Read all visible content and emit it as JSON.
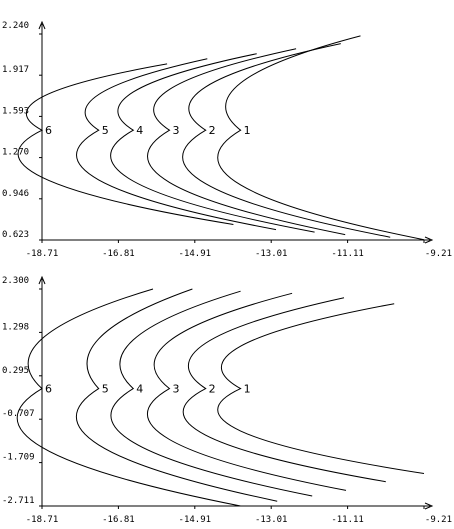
{
  "chart_data": [
    {
      "type": "line",
      "title": "",
      "xlabel": "",
      "ylabel": "",
      "x_ticks": [
        "-18.71",
        "-16.81",
        "-14.91",
        "-13.01",
        "-11.11",
        "-9.21"
      ],
      "y_ticks": [
        "0.623",
        "0.946",
        "1.270",
        "1.593",
        "1.917",
        "2.240"
      ],
      "xlim": [
        -18.71,
        -9.21
      ],
      "ylim": [
        0.623,
        2.24
      ],
      "grid": false,
      "series": [
        {
          "name": "1",
          "vertex_x": -13.77,
          "vertex_y": 1.485,
          "upper_x": -10.79,
          "upper_y": 2.225,
          "lower_x": -9.21,
          "lower_y": 0.625
        },
        {
          "name": "2",
          "vertex_x": -14.64,
          "vertex_y": 1.485,
          "upper_x": -11.28,
          "upper_y": 2.165,
          "lower_x": -10.05,
          "lower_y": 0.645
        },
        {
          "name": "3",
          "vertex_x": -15.54,
          "vertex_y": 1.485,
          "upper_x": -12.39,
          "upper_y": 2.125,
          "lower_x": -11.17,
          "lower_y": 0.665
        },
        {
          "name": "4",
          "vertex_x": -16.44,
          "vertex_y": 1.485,
          "upper_x": -13.37,
          "upper_y": 2.085,
          "lower_x": -11.93,
          "lower_y": 0.685
        },
        {
          "name": "5",
          "vertex_x": -17.3,
          "vertex_y": 1.485,
          "upper_x": -14.6,
          "upper_y": 2.045,
          "lower_x": -12.89,
          "lower_y": 0.705
        },
        {
          "name": "6",
          "vertex_x": -18.71,
          "vertex_y": 1.485,
          "upper_x": -15.6,
          "upper_y": 2.005,
          "lower_x": -13.95,
          "lower_y": 0.745
        }
      ]
    },
    {
      "type": "line",
      "title": "",
      "xlabel": "",
      "ylabel": "",
      "x_ticks": [
        "-18.71",
        "-16.81",
        "-14.91",
        "-13.01",
        "-11.11",
        "-9.21"
      ],
      "y_ticks": [
        "-2.711",
        "-1.709",
        "-0.707",
        "0.295",
        "1.298",
        "2.300"
      ],
      "xlim": [
        -18.71,
        -9.21
      ],
      "ylim": [
        -2.711,
        2.3
      ],
      "grid": false,
      "series": [
        {
          "name": "1",
          "vertex_x": -13.77,
          "vertex_y": 0.0,
          "upper_x": -9.95,
          "upper_y": 1.96,
          "lower_x": -9.21,
          "lower_y": -1.96
        },
        {
          "name": "2",
          "vertex_x": -14.64,
          "vertex_y": 0.0,
          "upper_x": -11.2,
          "upper_y": 2.1,
          "lower_x": -10.16,
          "lower_y": -2.15
        },
        {
          "name": "3",
          "vertex_x": -15.54,
          "vertex_y": 0.0,
          "upper_x": -12.49,
          "upper_y": 2.2,
          "lower_x": -11.15,
          "lower_y": -2.35
        },
        {
          "name": "4",
          "vertex_x": -16.44,
          "vertex_y": 0.0,
          "upper_x": -13.77,
          "upper_y": 2.25,
          "lower_x": -11.99,
          "lower_y": -2.48
        },
        {
          "name": "5",
          "vertex_x": -17.3,
          "vertex_y": 0.0,
          "upper_x": -14.97,
          "upper_y": 2.3,
          "lower_x": -12.86,
          "lower_y": -2.6
        },
        {
          "name": "6",
          "vertex_x": -18.71,
          "vertex_y": 0.0,
          "upper_x": -15.95,
          "upper_y": 2.3,
          "lower_x": -13.77,
          "lower_y": -2.71
        }
      ]
    }
  ]
}
